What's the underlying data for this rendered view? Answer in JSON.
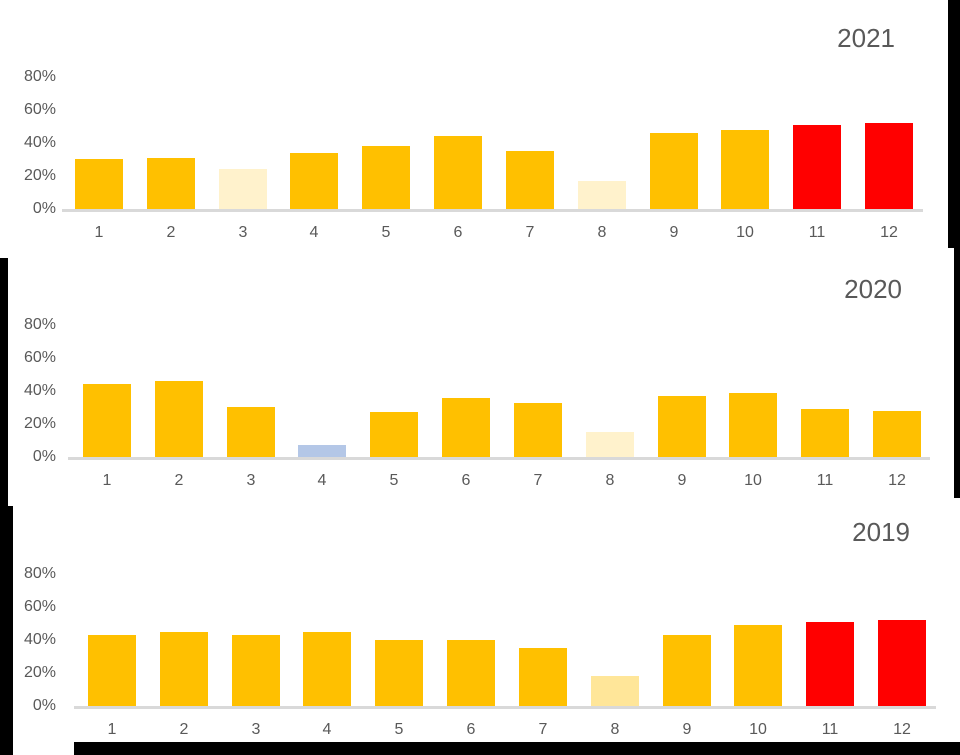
{
  "page": {
    "background_color": "#FFFFFF",
    "frame_color": "#000000",
    "text_color": "#595959",
    "axis_line_color": "#D9D9D9"
  },
  "chart_data": [
    {
      "type": "bar",
      "title": "2021",
      "categories": [
        "1",
        "2",
        "3",
        "4",
        "5",
        "6",
        "7",
        "8",
        "9",
        "10",
        "11",
        "12"
      ],
      "values": [
        30,
        31,
        24,
        34,
        38,
        44,
        35,
        17,
        46,
        48,
        51,
        52
      ],
      "colors": [
        "#FFC000",
        "#FFC000",
        "#FFF2CC",
        "#FFC000",
        "#FFC000",
        "#FFC000",
        "#FFC000",
        "#FFF2CC",
        "#FFC000",
        "#FFC000",
        "#FF0000",
        "#FF0000"
      ],
      "bar_color_default": "#FFC000",
      "yticks_labels": [
        "80%",
        "60%",
        "40%",
        "20%",
        "0%"
      ],
      "yticks_values": [
        80,
        60,
        40,
        20,
        0
      ],
      "ylim": [
        0,
        80
      ],
      "xlabel": "",
      "ylabel": "",
      "grid": false,
      "legend": "none",
      "title_position": "top-right"
    },
    {
      "type": "bar",
      "title": "2020",
      "categories": [
        "1",
        "2",
        "3",
        "4",
        "5",
        "6",
        "7",
        "8",
        "9",
        "10",
        "11",
        "12"
      ],
      "values": [
        44,
        46,
        30,
        7,
        27,
        36,
        33,
        15,
        37,
        39,
        29,
        28
      ],
      "colors": [
        "#FFC000",
        "#FFC000",
        "#FFC000",
        "#B4C7E7",
        "#FFC000",
        "#FFC000",
        "#FFC000",
        "#FFF2CC",
        "#FFC000",
        "#FFC000",
        "#FFC000",
        "#FFC000"
      ],
      "bar_color_default": "#FFC000",
      "yticks_labels": [
        "80%",
        "60%",
        "40%",
        "20%",
        "0%"
      ],
      "yticks_values": [
        80,
        60,
        40,
        20,
        0
      ],
      "ylim": [
        0,
        80
      ],
      "xlabel": "",
      "ylabel": "",
      "grid": false,
      "legend": "none",
      "title_position": "top-right"
    },
    {
      "type": "bar",
      "title": "2019",
      "categories": [
        "1",
        "2",
        "3",
        "4",
        "5",
        "6",
        "7",
        "8",
        "9",
        "10",
        "11",
        "12"
      ],
      "values": [
        43,
        45,
        43,
        45,
        40,
        40,
        35,
        18,
        43,
        49,
        51,
        52
      ],
      "colors": [
        "#FFC000",
        "#FFC000",
        "#FFC000",
        "#FFC000",
        "#FFC000",
        "#FFC000",
        "#FFC000",
        "#FFE699",
        "#FFC000",
        "#FFC000",
        "#FF0000",
        "#FF0000"
      ],
      "bar_color_default": "#FFC000",
      "yticks_labels": [
        "80%",
        "60%",
        "40%",
        "20%",
        "0%"
      ],
      "yticks_values": [
        80,
        60,
        40,
        20,
        0
      ],
      "ylim": [
        0,
        80
      ],
      "xlabel": "",
      "ylabel": "",
      "grid": false,
      "legend": "none",
      "title_position": "top-right"
    }
  ]
}
